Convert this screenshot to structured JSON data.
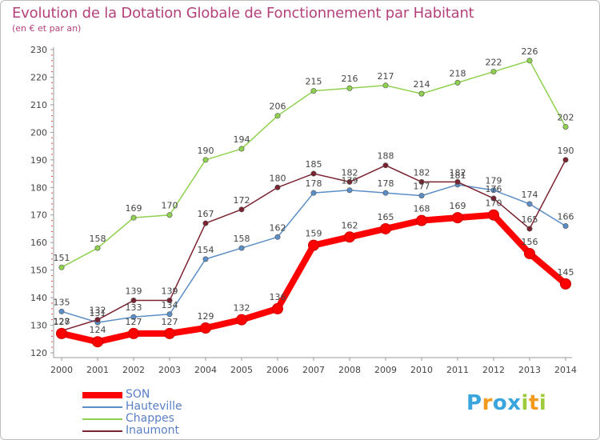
{
  "chart_data": {
    "type": "line",
    "title": "Evolution de la Dotation Globale de Fonctionnement par Habitant",
    "subtitle": "(en € et par an)",
    "x": [
      "2000",
      "2001",
      "2002",
      "2003",
      "2004",
      "2005",
      "2006",
      "2007",
      "2008",
      "2009",
      "2010",
      "2011",
      "2012",
      "2013",
      "2014"
    ],
    "yticks": [
      120,
      130,
      140,
      150,
      160,
      170,
      180,
      190,
      200,
      210,
      220,
      230
    ],
    "ylim": [
      120,
      230
    ],
    "grid": false,
    "legend_position": "bottom-left",
    "series": [
      {
        "name": "Hauteville",
        "color": "#5b8ec6",
        "values": [
          135,
          131,
          133,
          134,
          154,
          158,
          162,
          178,
          179,
          178,
          177,
          181,
          179,
          174,
          166
        ],
        "labels": [
          "135",
          "131",
          "133",
          "134",
          "154",
          "158",
          "162",
          "178",
          "179",
          "178",
          "177",
          "181",
          "179",
          "174",
          "166"
        ]
      },
      {
        "name": "Chappes",
        "color": "#8fd14f",
        "values": [
          151,
          158,
          169,
          170,
          190,
          194,
          206,
          215,
          216,
          217,
          214,
          218,
          222,
          226,
          202
        ],
        "labels": [
          "151",
          "158",
          "169",
          "170",
          "190",
          "194",
          "206",
          "215",
          "216",
          "217",
          "214",
          "218",
          "222",
          "226",
          "202"
        ]
      },
      {
        "name": "Inaumont",
        "color": "#7a2230",
        "values": [
          128,
          132,
          139,
          139,
          167,
          172,
          180,
          185,
          182,
          188,
          182,
          182,
          176,
          165,
          190
        ],
        "labels": [
          "128",
          "132",
          "139",
          "139",
          "167",
          "172",
          "180",
          "185",
          "182",
          "188",
          "182",
          "182",
          "176",
          "165",
          "190"
        ]
      },
      {
        "name": "SON",
        "color": "#ff0000",
        "values": [
          127,
          124,
          127,
          127,
          129,
          132,
          136,
          159,
          162,
          165,
          168,
          169,
          170,
          156,
          145
        ],
        "labels": [
          "127",
          "124",
          "127",
          "127",
          "129",
          "132",
          "136",
          "159",
          "162",
          "165",
          "168",
          "169",
          "170",
          "156",
          "145"
        ]
      }
    ]
  },
  "legend": {
    "items": [
      {
        "name": "SON",
        "color": "#ff0000"
      },
      {
        "name": "Hauteville",
        "color": "#5b8ec6"
      },
      {
        "name": "Chappes",
        "color": "#8fd14f"
      },
      {
        "name": "Inaumont",
        "color": "#7a2230"
      }
    ]
  },
  "logo": {
    "letters": [
      "P",
      "r",
      "o",
      "x",
      "i",
      "t",
      "i"
    ],
    "colors": [
      "#3aa5dc",
      "#f29a1d",
      "#3aa5dc",
      "#3aa5dc",
      "#9ecb3c",
      "#f29a1d",
      "#9ecb3c"
    ]
  }
}
